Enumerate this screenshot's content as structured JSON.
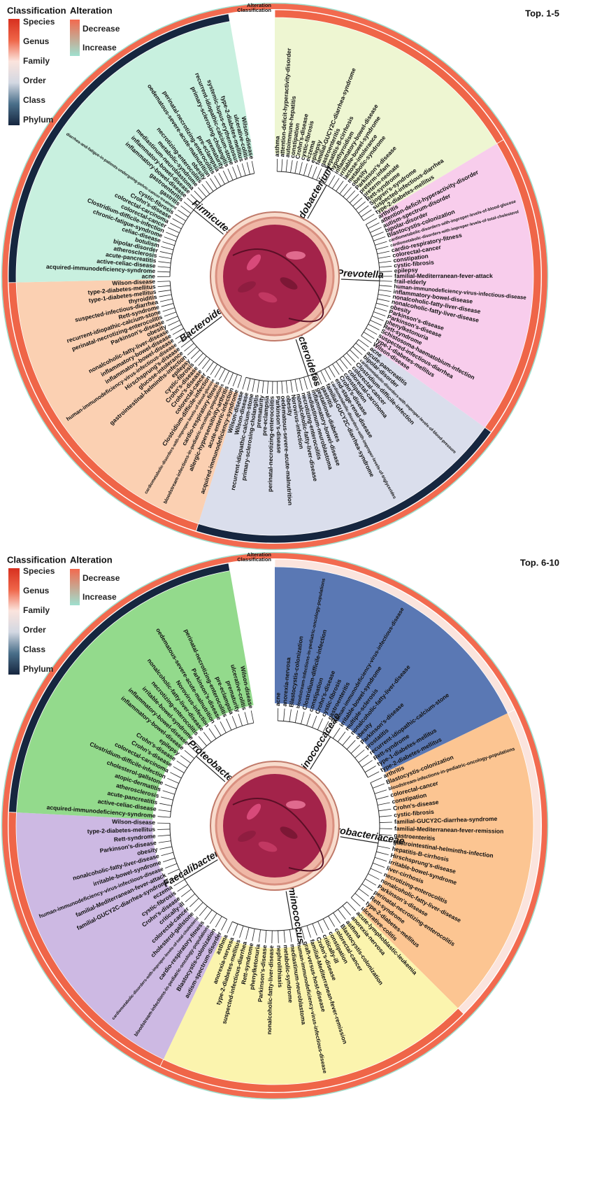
{
  "legend": {
    "classification_title": "Classification",
    "classification_levels": [
      "Species",
      "Genus",
      "Family",
      "Order",
      "Class",
      "Phylum"
    ],
    "classification_colors": [
      "#d7301f",
      "#ef6548",
      "#fbe4dd",
      "#d3d8e2",
      "#4a6f8a",
      "#16263f"
    ],
    "alteration_title": "Alteration",
    "alteration_levels": [
      "Decrease",
      "Increase"
    ],
    "alteration_colors": [
      "#f26a4f",
      "#9fe0cf"
    ]
  },
  "ring_labels": [
    "Alteration",
    "Classification"
  ],
  "panels": [
    {
      "title": "Top. 1-5",
      "sectors": [
        {
          "taxon": "Bifidobacterium",
          "level": "Genus",
          "color": "#eef6d2",
          "diseases": [
            "asthma",
            "attention-deficit-hyperactivity-disorder",
            "autoimmune-hepatitis",
            "constipation",
            "Crohn's-disease",
            "cystic-fibrosis",
            "eczema",
            "epilepsy",
            "familial-GUCY2C-diarrhea-syndrome",
            "gastroenteritis",
            "hepatitis-B-cirrhosis",
            "hypothyroidism",
            "inflammatory-bowel-disease",
            "irritable-bowel-syndrome",
            "lactose-intolerance",
            "metabolic-syndrome",
            "obesity",
            "Parkinson's-disease",
            "preterm-infant",
            "preterm-neonate",
            "Rett-syndrome",
            "Sjogren's-syndrome",
            "suspected-infectious-diarrhea",
            "type-2-diabetes-mellitus"
          ]
        },
        {
          "taxon": "Prevotella",
          "level": "Genus",
          "color": "#f8cdec",
          "diseases": [
            "arthritis",
            "attention-deficit-hyperactivity-disorder",
            "autism-spectrum-disorder",
            "bipolar-disorder",
            "Blastocystis-colonization",
            "cardiometabolic-disorders-with-improper-levels-of-blood-glucose",
            "cardiometabolic-disorders-with-improper-levels-of-total-cholesterol",
            "cardio-respiratory-fitness",
            "colorectal-cancer",
            "constipation",
            "cystic-fibrosis",
            "epilepsy",
            "familial-Mediterranean-fever-attack",
            "frail-elderly",
            "human-immunodeficiency-virus-infectious-disease",
            "inflammatory-bowel-disease",
            "nonalcoholic-fatty-liver-disease",
            "nonalcoholic-fatty-liver-disease",
            "obesity",
            "Parkinson's-disease",
            "Parkinson's-disease",
            "phenylketonuria",
            "Rett-syndrome",
            "Schistosoma-haematobium-infection",
            "suspected-infectious-diarrhea",
            "type-1-diabetes-mellitus",
            "Wilson-disease"
          ]
        },
        {
          "taxon": "Bacteroidetes",
          "level": "Phylum",
          "color": "#dadeec",
          "diseases": [
            "acne",
            "acute-pancreatitis",
            "bipolar-disorder",
            "cardiometabolic-disorders-with-improper-levels-of-blood-pressure",
            "Clostridium-difficile-infection",
            "colorectal-cancer",
            "colorectal-carcinoma",
            "constipation",
            "Crohn's-disease",
            "end-stage-renal-disease",
            "cardiometabolic-disorders-with-improper-levels-of-triglycerides",
            "familial-GUCY2C-diarrhea-syndrome",
            "gastritis",
            "gestational-diabetes",
            "inflammatory-bowel-disease",
            "mediastinum-neuroblastoma",
            "necrotizing-enterocolitis",
            "nonalcoholic-fatty-liver-disease",
            "Norovirus-infection",
            "obesity",
            "oedematous-severe-acute-malnutrition",
            "Parkinson's-disease",
            "perinatal-necrotizing-enterocolitis",
            "pre-eclampsia",
            "prematurity",
            "primary-sclerosing-cholangitis",
            "recurrent-idiopathic-calcium-stone",
            "Wilson-disease",
            "Wilson-disease"
          ]
        },
        {
          "taxon": "Bacteroides",
          "level": "Genus",
          "color": "#fbd0b2",
          "diseases": [
            "acquired-immunodeficiency-syndrome",
            "acute-enteric-infection",
            "allergic-hypersensitivity-arthritis",
            "bloodstream-infections-in-pediatric-oncology-populations",
            "cardio-respiratory-fitness",
            "cardiometabolic-disorders-with-improper-levels-of-blood-glucose",
            "Clostridium-difficile-infection",
            "colorectal-cancer",
            "Crohn's-disease",
            "Crohn's-disease",
            "cystic-fibrosis",
            "epilepsy",
            "gastrointestinal-helminths-infection",
            "glucose-intolerance",
            "Hirschsprung's-disease",
            "human-immunodeficiency-virus-infectious-disease",
            "inflammatory-bowel-disease",
            "inflammatory-bowel-disease",
            "nonalcoholic-fatty-liver-disease",
            "obesity",
            "Parkinson's-disease",
            "perinatal-necrotizing-enterocolitis",
            "recurrent-idiopathic-calcium-stone",
            "Rett-syndrome",
            "suspected-infectious-diarrhea",
            "thyroiditis",
            "type-1-diabetes-mellitus",
            "type-2-diabetes-mellitus",
            "Wilson-disease"
          ]
        },
        {
          "taxon": "Firmicutes",
          "level": "Phylum",
          "color": "#c8f0df",
          "diseases": [
            "acne",
            "acquired-immunodeficiency-syndrome",
            "active-celiac-disease",
            "acute-pancreatitis",
            "atherosclerosis",
            "bipolar-disorder",
            "botulism",
            "celiac-disease",
            "chronic-fatigue-syndrome",
            "Clostridium-difficile-infection",
            "colorectal-cancer",
            "colorectal-carcinoma",
            "Crohn's-disease",
            "cystic-fibrosis",
            "diarrhea-and-fatigue-in-patients-undergoing-pelvic-cancer-treatment",
            "gastritis",
            "gastroenteritis",
            "inflammatory-bowel-disease",
            "inflammatory-bowel-disease",
            "mediastinum-neuroblastoma",
            "metabolic-syndrome",
            "necrotizing-enterocolitis",
            "obesity",
            "oedematous-severe-acute-malnutrition",
            "perinatal-necrotizing-enterocolitis",
            "pre-eclampsia",
            "prematurity",
            "primary-sclerosing-cholangitis",
            "recurrent-idiopathic-calcium-stone",
            "systemic-lupus-erythematosus",
            "type-2-diabetes-mellitus",
            "ulcerative-colitis",
            "Wilson-disease"
          ]
        }
      ]
    },
    {
      "title": "Top. 6-10",
      "sectors": [
        {
          "taxon": "Ruminococcaceae",
          "level": "Family",
          "color": "#5a78b4",
          "diseases": [
            "acne",
            "anorexia-nervosa",
            "Blastocystis-colonization",
            "bloodstream-infections-in-pediatric-oncology-populations",
            "Clostridium-difficile-infection",
            "constipation",
            "Crohn's-disease",
            "cystic-fibrosis",
            "gastroenteritis",
            "human-immunodeficiency-virus-infectious-disease",
            "irritable-bowel-syndrome",
            "multiple-sclerosis",
            "nonalcoholic-fatty-liver-disease",
            "obesity",
            "Parkinson's-disease",
            "prostatitis",
            "recurrent-idiopathic-calcium-stone",
            "Rett-syndrome",
            "type-1-diabetes-mellitus",
            "type-2-diabetes-mellitus"
          ]
        },
        {
          "taxon": "Enterobacteriaceae",
          "level": "Family",
          "color": "#fcc592",
          "diseases": [
            "arthritis",
            "Blastocystis-colonization",
            "bloodstream-infections-in-pediatric-oncology-populations",
            "colorectal-cancer",
            "constipation",
            "Crohn's-disease",
            "cystic-fibrosis",
            "familial-GUCY2C-diarrhea-syndrome",
            "familial-Mediterranean-fever-remission",
            "gastroenteritis",
            "gastrointestinal-helminths-infection",
            "hepatitis-B-cirrhosis",
            "Hirschsprung's-disease",
            "irritable-bowel-syndrome",
            "liver-cirrhosis",
            "necrotizing-enterocolitis",
            "nonalcoholic-fatty-liver-disease",
            "Parkinson's-disease",
            "perinatal-necrotizing-enterocolitis",
            "Rett-syndrome",
            "type-2-diabetes-mellitus",
            "ulcerative-colitis"
          ]
        },
        {
          "taxon": "Ruminococcus",
          "level": "Genus",
          "color": "#fbf4ae",
          "diseases": [
            "acute-lymphoblastic-leukemia",
            "anorexia-nervosa",
            "asthma",
            "Blastocystis-colonization",
            "colorectal-cancer",
            "constipation",
            "critically-ill",
            "Crohn's-disease",
            "familial-Mediterranean-fever-remission",
            "graft-versus-host-disease",
            "human-immunodeficiency-virus-infectious-disease",
            "mediastinum-neuroblastoma",
            "metabolic-syndrome",
            "nephrolithiasis",
            "nonalcoholic-fatty-liver-disease",
            "Parkinson's-disease",
            "phenylketonuria",
            "Rett-syndrome",
            "suspected-infectious-diarrhea",
            "type-2-diabetes-mellitus",
            "anorexia-nervosa",
            "asthma"
          ]
        },
        {
          "taxon": "Faecalibacterium",
          "level": "Genus",
          "color": "#cdb9e3",
          "diseases": [
            "autism-spectrum-disorder",
            "Blastocystis-colonization",
            "bloodstream-infections-in-pediatric-oncology-populations",
            "cardio-respiratory-fitness",
            "cardiometabolic-disorders-with-improper-levels-of-total-cholesterol",
            "cholesterol-gallstone",
            "colorectal-cancer",
            "critically-ill",
            "Crohn's-disease",
            "cystic-fibrosis",
            "eczema",
            "familial-GUCY2C-diarrhea-syndrome",
            "familial-Mediterranean-fever-attack",
            "human-immunodeficiency-virus-infectious-disease",
            "irritable-bowel-syndrome",
            "nonalcoholic-fatty-liver-disease",
            "obesity",
            "Parkinson's-disease",
            "Rett-syndrome",
            "type-2-diabetes-mellitus",
            "Wilson-disease"
          ]
        },
        {
          "taxon": "Proteobacteria",
          "level": "Phylum",
          "color": "#93da8c",
          "diseases": [
            "acquired-immunodeficiency-syndrome",
            "active-celiac-disease",
            "acute-pancreatitis",
            "atherosclerosis",
            "atopic-dermatitis",
            "cholesterol-gallstone",
            "Clostridium-difficile-infection",
            "colorectal-carcinoma",
            "Crohn's-disease",
            "Crohn's-disease",
            "epilepsy",
            "inflammatory-bowel-disease",
            "inflammatory-bowel-disease",
            "irritable-bowel-syndrome",
            "necrotizing-enterocolitis",
            "nonalcoholic-fatty-liver-disease",
            "Norovirus-infection",
            "oedematous-severe-acute-malnutrition",
            "Parkinson's-disease",
            "perinatal-necrotizing-enterocolitis",
            "pre-eclampsia",
            "prematurity",
            "ulcerative-colitis",
            "Wilson-disease"
          ]
        }
      ]
    }
  ]
}
